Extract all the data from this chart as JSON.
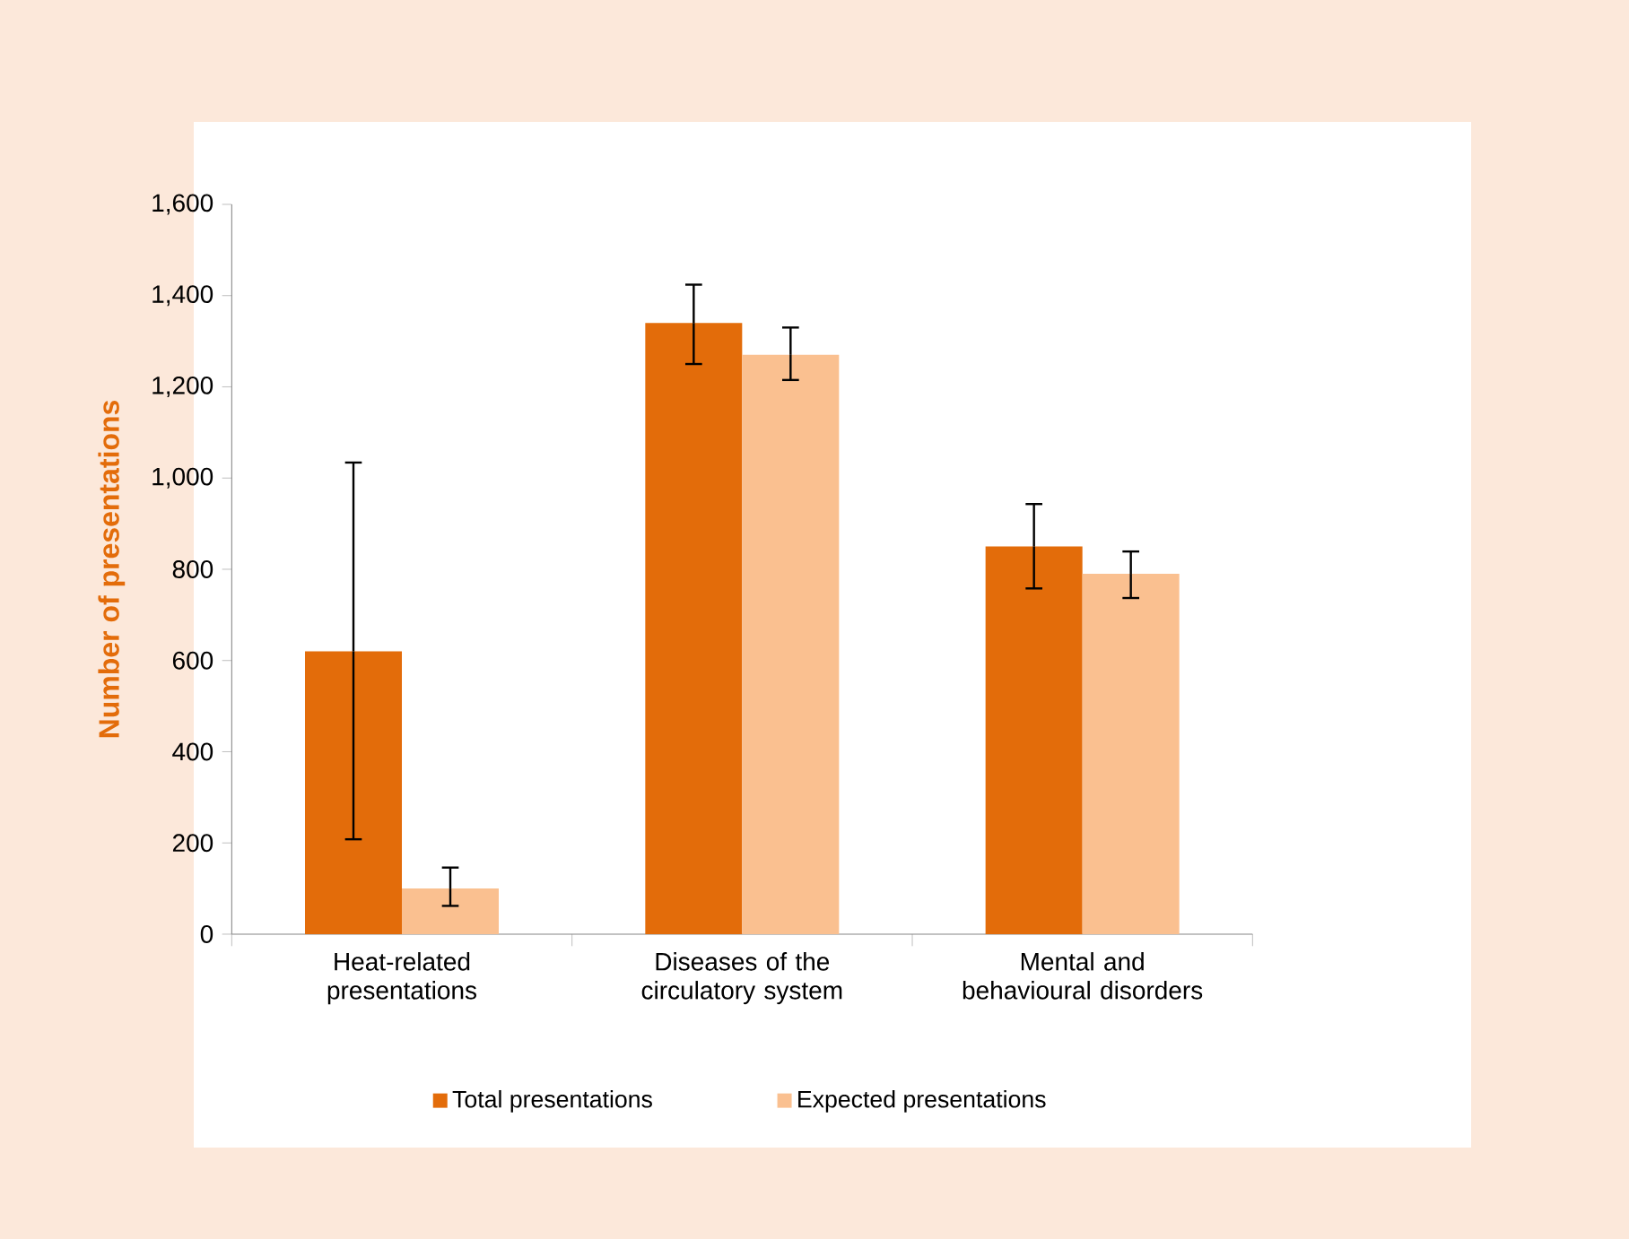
{
  "chart_data": {
    "type": "bar",
    "categories": [
      "Heat-related presentations",
      "Diseases of the circulatory system",
      "Mental and behavioural disorders"
    ],
    "ylabel": "Number of presentations",
    "ylim": [
      0,
      1600
    ],
    "yticks": [
      0,
      200,
      400,
      600,
      800,
      {
        "value": 1000,
        "label": "1,000"
      },
      {
        "value": 1200,
        "label": "1,200"
      },
      {
        "value": 1400,
        "label": "1,400"
      },
      {
        "value": 1600,
        "label": "1,600"
      }
    ],
    "legend": "bottom",
    "grid": false,
    "series": [
      {
        "name": "Total presentations",
        "color": "#e36c0a",
        "values": [
          620,
          1340,
          850
        ],
        "errors": [
          [
            208,
            1034
          ],
          [
            1250,
            1424
          ],
          [
            758,
            943
          ]
        ]
      },
      {
        "name": "Expected presentations",
        "color": "#fac090",
        "values": [
          100,
          1270,
          790
        ],
        "errors": [
          [
            62,
            146
          ],
          [
            1215,
            1330
          ],
          [
            737,
            839
          ]
        ]
      }
    ]
  }
}
